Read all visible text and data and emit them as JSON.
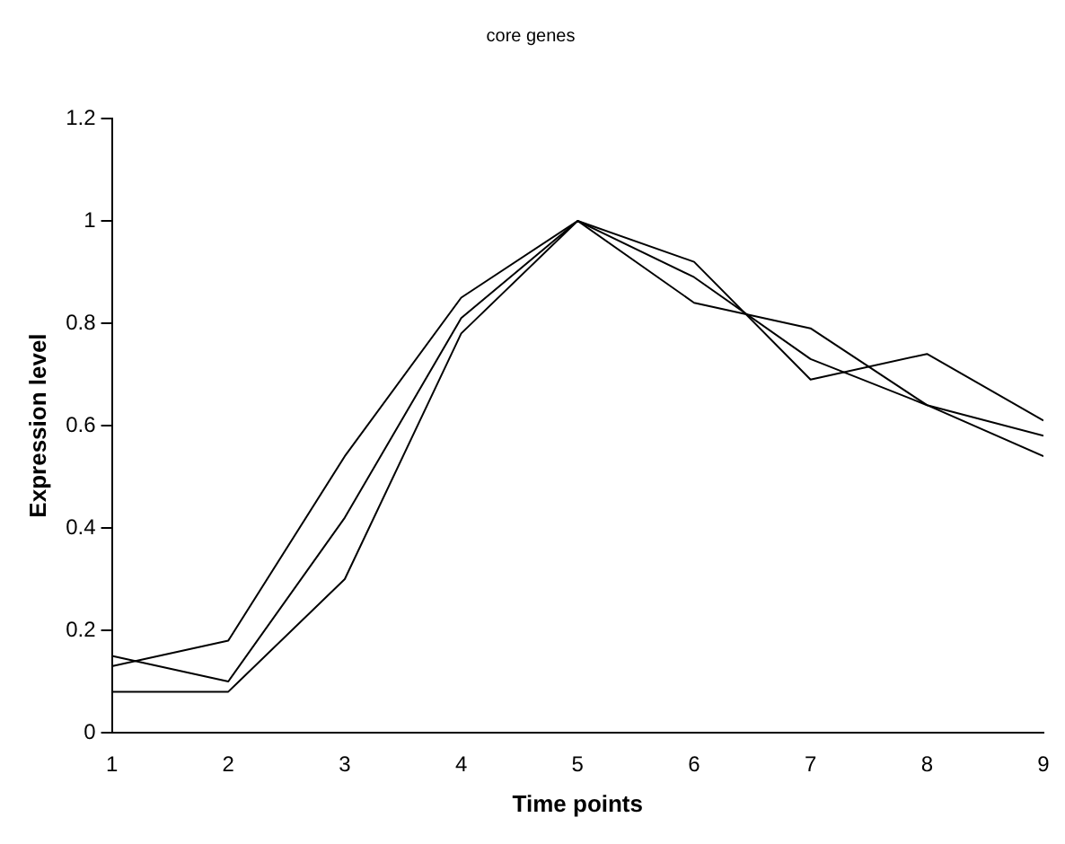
{
  "chart_data": {
    "type": "line",
    "title": "core genes",
    "xlabel": "Time points",
    "ylabel": "Expression level",
    "x": [
      1,
      2,
      3,
      4,
      5,
      6,
      7,
      8,
      9
    ],
    "series": [
      {
        "color": "#000000",
        "values": [
          0.13,
          0.18,
          0.54,
          0.85,
          1,
          0.92,
          0.69,
          0.74,
          0.61
        ]
      },
      {
        "color": "#000000",
        "values": [
          0.15,
          0.1,
          0.42,
          0.81,
          1,
          0.89,
          0.73,
          0.64,
          0.58
        ]
      },
      {
        "color": "#000000",
        "values": [
          0.08,
          0.08,
          0.3,
          0.78,
          1,
          0.84,
          0.79,
          0.64,
          0.54
        ]
      }
    ],
    "xlim": [
      1,
      9
    ],
    "xticks": [
      1,
      2,
      3,
      4,
      5,
      6,
      7,
      8,
      9
    ],
    "ylim": [
      0,
      1.2
    ],
    "yticks": [
      0,
      0.2,
      0.4,
      0.6,
      0.8,
      1,
      1.2
    ],
    "grid": false,
    "legend": false,
    "marker": "none",
    "line_style": "solid"
  }
}
